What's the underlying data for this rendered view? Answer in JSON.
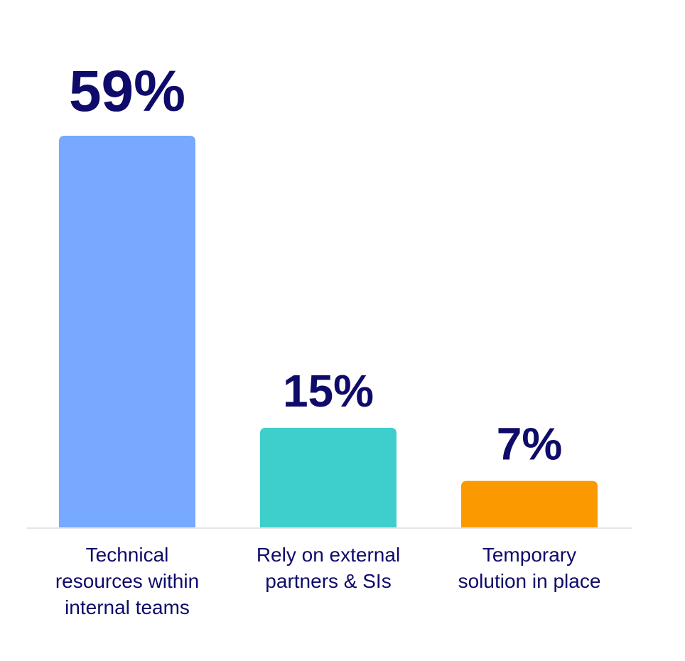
{
  "chart_data": {
    "type": "bar",
    "categories": [
      "Technical\nresources within\ninternal teams",
      "Rely on external\npartners & SIs",
      "Temporary\nsolution in place"
    ],
    "values": [
      59,
      15,
      7
    ],
    "value_labels": [
      "59%",
      "15%",
      "7%"
    ],
    "colors": [
      "#76a9ff",
      "#3ecfcc",
      "#fb9a00"
    ]
  }
}
